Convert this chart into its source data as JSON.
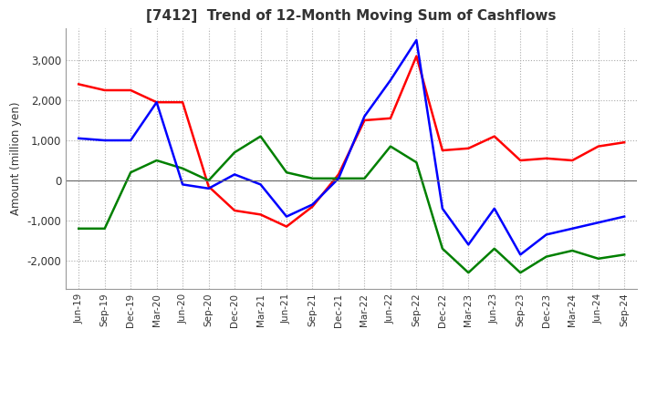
{
  "title": "[7412]  Trend of 12-Month Moving Sum of Cashflows",
  "ylabel": "Amount (million yen)",
  "ylim": [
    -2700,
    3800
  ],
  "yticks": [
    -2000,
    -1000,
    0,
    1000,
    2000,
    3000
  ],
  "x_labels": [
    "Jun-19",
    "Sep-19",
    "Dec-19",
    "Mar-20",
    "Jun-20",
    "Sep-20",
    "Dec-20",
    "Mar-21",
    "Jun-21",
    "Sep-21",
    "Dec-21",
    "Mar-22",
    "Jun-22",
    "Sep-22",
    "Dec-22",
    "Mar-23",
    "Jun-23",
    "Sep-23",
    "Dec-23",
    "Mar-24",
    "Jun-24",
    "Sep-24"
  ],
  "operating": [
    2400,
    2250,
    2250,
    1950,
    1950,
    -150,
    -750,
    -850,
    -1150,
    -650,
    150,
    1500,
    1550,
    3100,
    750,
    800,
    1100,
    500,
    550,
    500,
    850,
    950
  ],
  "investing": [
    -1200,
    -1200,
    200,
    500,
    300,
    0,
    700,
    1100,
    200,
    50,
    50,
    50,
    850,
    450,
    -1700,
    -2300,
    -1700,
    -2300,
    -1900,
    -1750,
    -1950,
    -1850
  ],
  "free": [
    1050,
    1000,
    1000,
    1950,
    -100,
    -200,
    150,
    -100,
    -900,
    -600,
    50,
    1600,
    2500,
    3500,
    -700,
    -1600,
    -700,
    -1850,
    -1350,
    -1200,
    -1050,
    -900
  ],
  "operating_color": "#ff0000",
  "investing_color": "#008000",
  "free_color": "#0000ff",
  "background_color": "#ffffff",
  "grid_color": "#aaaaaa",
  "zero_line_color": "#666666",
  "title_fontsize": 11,
  "axis_fontsize": 8.5,
  "legend_fontsize": 9
}
